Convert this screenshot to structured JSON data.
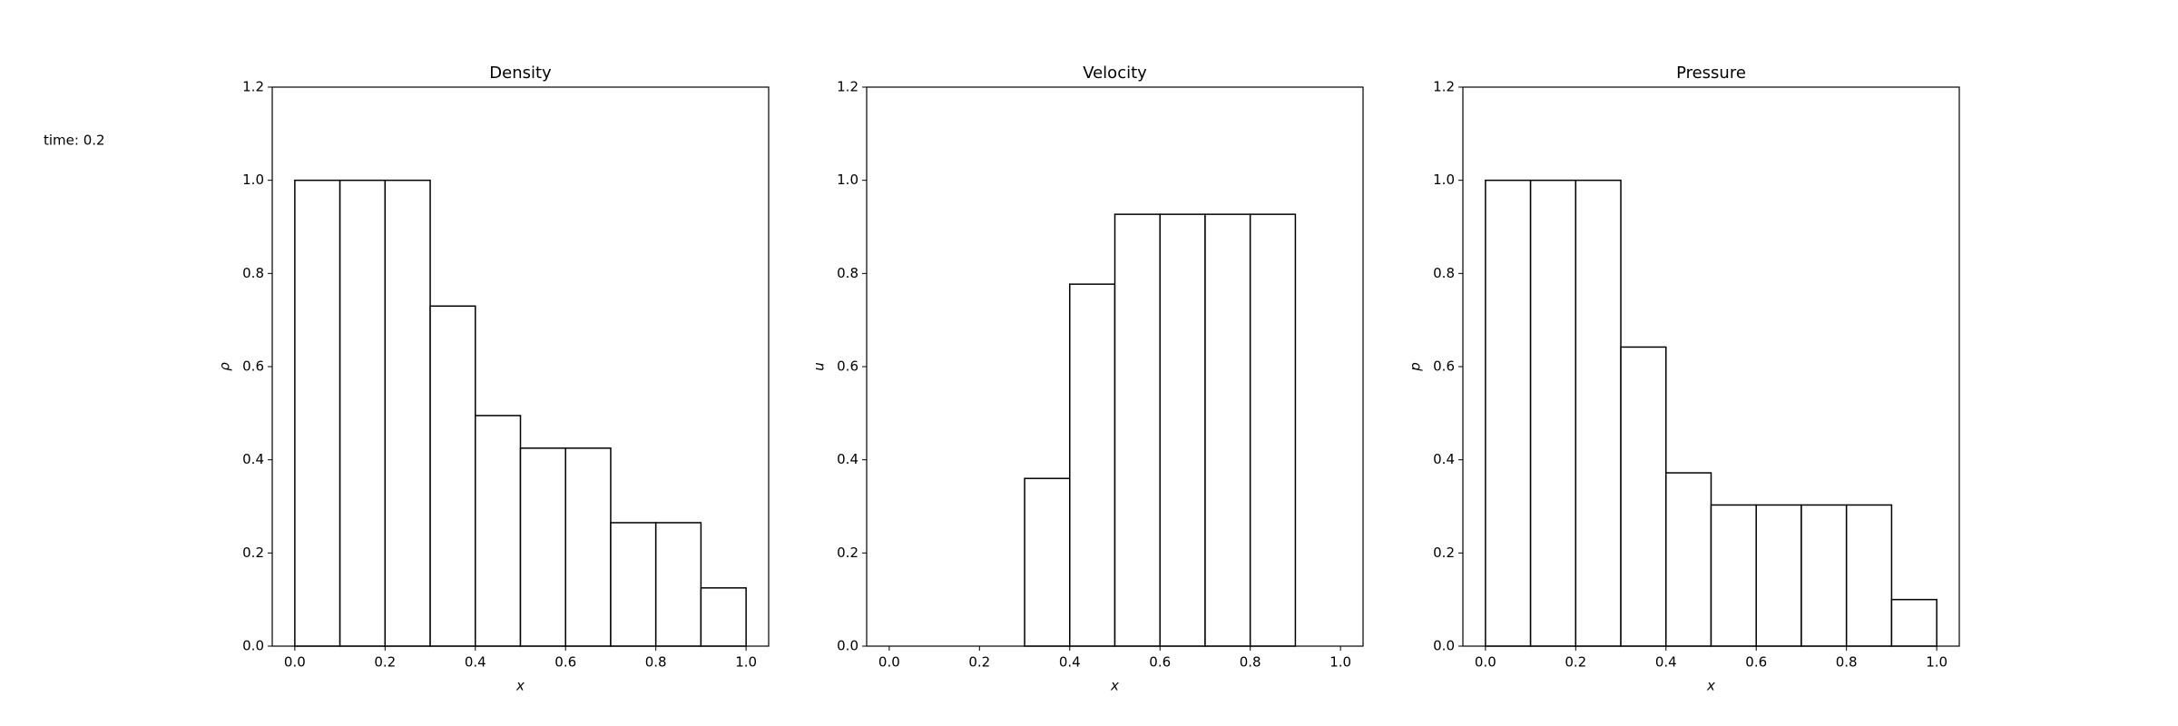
{
  "time_label": "time: 0.2",
  "chart_data": [
    {
      "type": "histogram",
      "title": "Density",
      "xlabel": "x",
      "ylabel": "ρ",
      "bins": [
        0,
        0.1,
        0.2,
        0.3,
        0.4,
        0.5,
        0.6,
        0.7,
        0.8,
        0.9,
        1.0
      ],
      "values": [
        1.0,
        1.0,
        1.0,
        0.73,
        0.495,
        0.425,
        0.425,
        0.265,
        0.265,
        0.125
      ],
      "color": "#ffffff",
      "edgecolor": "#000000",
      "xlim": [
        -0.05,
        1.05
      ],
      "ylim": [
        0,
        1.2
      ],
      "xticks": [
        {
          "value": 0,
          "label": "0.0"
        },
        0.2,
        0.4,
        0.6,
        0.8,
        {
          "value": 1,
          "label": "1.0"
        }
      ],
      "yticks": [
        {
          "value": 0,
          "label": "0.0"
        },
        0.2,
        0.4,
        0.6,
        0.8,
        {
          "value": 1,
          "label": "1.0"
        },
        1.2
      ]
    },
    {
      "type": "histogram",
      "title": "Velocity",
      "xlabel": "x",
      "ylabel": "u",
      "bins": [
        0,
        0.1,
        0.2,
        0.3,
        0.4,
        0.5,
        0.6,
        0.7,
        0.8,
        0.9,
        1.0
      ],
      "values": [
        0,
        0,
        0,
        0.36,
        0.777,
        0.927,
        0.927,
        0.927,
        0.927,
        0
      ],
      "color": "#ffffff",
      "edgecolor": "#000000",
      "xlim": [
        -0.05,
        1.05
      ],
      "ylim": [
        0,
        1.2
      ],
      "xticks": [
        {
          "value": 0,
          "label": "0.0"
        },
        0.2,
        0.4,
        0.6,
        0.8,
        {
          "value": 1,
          "label": "1.0"
        }
      ],
      "yticks": [
        {
          "value": 0,
          "label": "0.0"
        },
        0.2,
        0.4,
        0.6,
        0.8,
        {
          "value": 1,
          "label": "1.0"
        },
        1.2
      ]
    },
    {
      "type": "histogram",
      "title": "Pressure",
      "xlabel": "x",
      "ylabel": "p",
      "bins": [
        0,
        0.1,
        0.2,
        0.3,
        0.4,
        0.5,
        0.6,
        0.7,
        0.8,
        0.9,
        1.0
      ],
      "values": [
        1.0,
        1.0,
        1.0,
        0.642,
        0.372,
        0.303,
        0.303,
        0.303,
        0.303,
        0.1
      ],
      "color": "#ffffff",
      "edgecolor": "#000000",
      "xlim": [
        -0.05,
        1.05
      ],
      "ylim": [
        0,
        1.2
      ],
      "xticks": [
        {
          "value": 0,
          "label": "0.0"
        },
        0.2,
        0.4,
        0.6,
        0.8,
        {
          "value": 1,
          "label": "1.0"
        }
      ],
      "yticks": [
        {
          "value": 0,
          "label": "0.0"
        },
        0.2,
        0.4,
        0.6,
        0.8,
        {
          "value": 1,
          "label": "1.0"
        },
        1.2
      ]
    }
  ]
}
